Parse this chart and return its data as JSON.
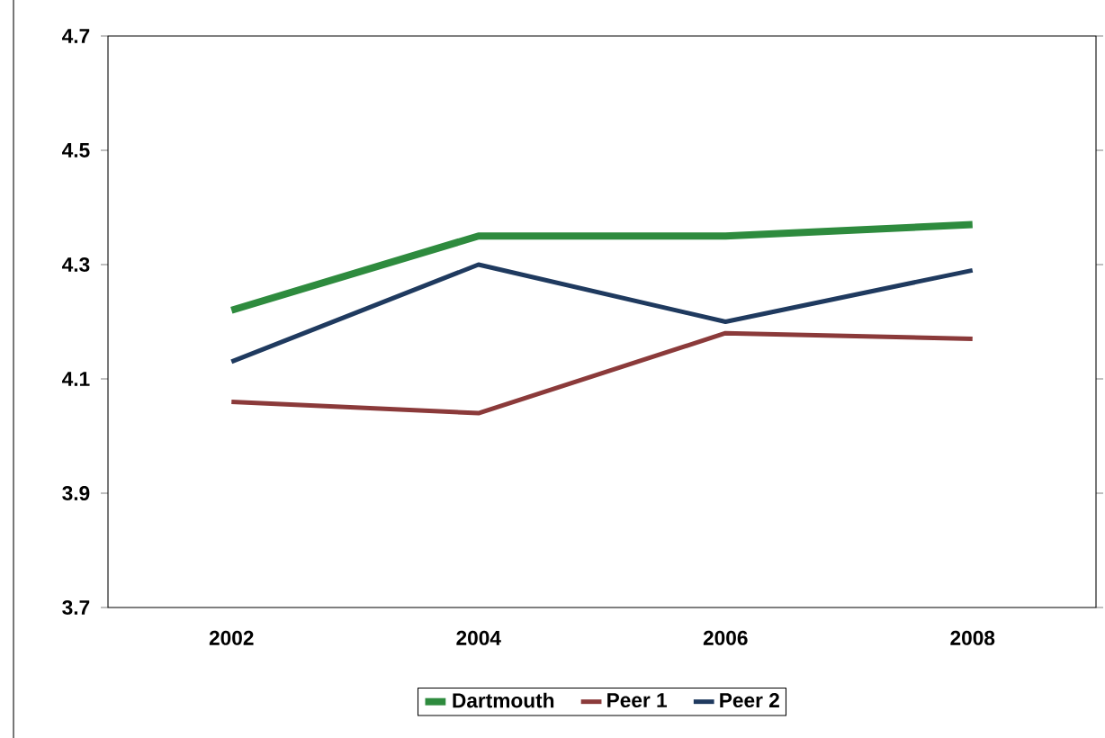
{
  "chart_data": {
    "type": "line",
    "categories": [
      "2002",
      "2004",
      "2006",
      "2008"
    ],
    "series": [
      {
        "name": "Dartmouth",
        "color": "#2e8b3e",
        "values": [
          4.22,
          4.35,
          4.35,
          4.37
        ]
      },
      {
        "name": "Peer 1",
        "color": "#8b3a3a",
        "values": [
          4.06,
          4.04,
          4.18,
          4.17
        ]
      },
      {
        "name": "Peer 2",
        "color": "#1f3a5f",
        "values": [
          4.13,
          4.3,
          4.2,
          4.29
        ]
      }
    ],
    "ylim": [
      3.7,
      4.7
    ],
    "yticks": [
      3.7,
      3.9,
      4.1,
      4.3,
      4.5,
      4.7
    ],
    "grid": false,
    "legend": "bottom",
    "marker": "none",
    "line_style": "solid"
  }
}
